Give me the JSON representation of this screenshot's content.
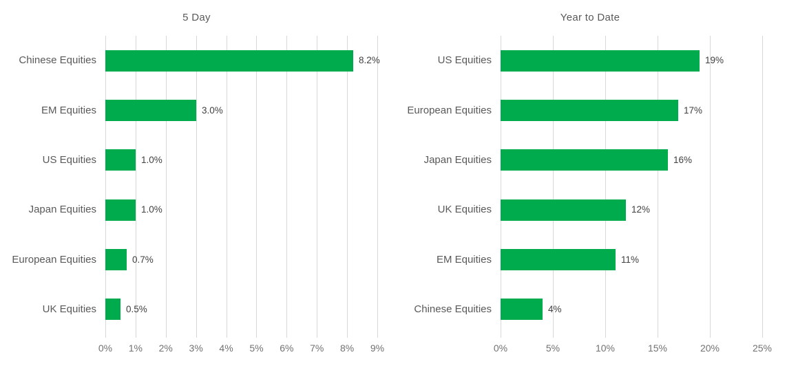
{
  "page": {
    "background": "#ffffff"
  },
  "colors": {
    "bar": "#00AB4E",
    "gridline": "#D8D8D8",
    "tick_label": "#717171",
    "category_label": "#595959",
    "title": "#595959",
    "value_label": "#404040"
  },
  "chart_data": [
    {
      "type": "bar",
      "orientation": "horizontal",
      "title": "5 Day",
      "categories": [
        "Chinese Equities",
        "EM Equities",
        "US Equities",
        "Japan Equities",
        "European Equities",
        "UK Equities"
      ],
      "values": [
        8.2,
        3.0,
        1.0,
        1.0,
        0.7,
        0.5
      ],
      "value_labels": [
        "8.2%",
        "3.0%",
        "1.0%",
        "1.0%",
        "0.7%",
        "0.5%"
      ],
      "xlim": [
        0,
        9
      ],
      "x_ticks": [
        "0%",
        "1%",
        "2%",
        "3%",
        "4%",
        "5%",
        "6%",
        "7%",
        "8%",
        "9%"
      ],
      "grid": "vertical",
      "legend": "none"
    },
    {
      "type": "bar",
      "orientation": "horizontal",
      "title": "Year to Date",
      "categories": [
        "US Equities",
        "European Equities",
        "Japan Equities",
        "UK Equities",
        "EM Equities",
        "Chinese Equities"
      ],
      "values": [
        19,
        17,
        16,
        12,
        11,
        4
      ],
      "value_labels": [
        "19%",
        "17%",
        "16%",
        "12%",
        "11%",
        "4%"
      ],
      "xlim": [
        0,
        25
      ],
      "x_ticks": [
        "0%",
        "5%",
        "10%",
        "15%",
        "20%",
        "25%"
      ],
      "grid": "vertical",
      "legend": "none"
    }
  ]
}
